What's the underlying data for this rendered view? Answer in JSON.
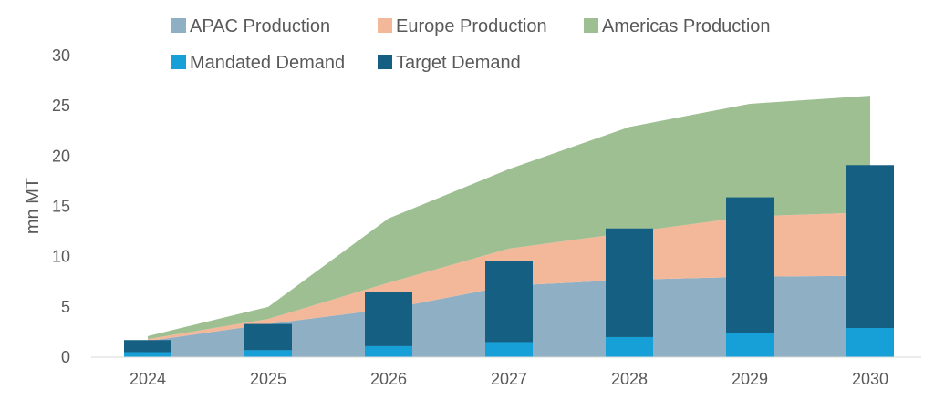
{
  "chart_data": {
    "type": "area",
    "categories": [
      "2024",
      "2025",
      "2026",
      "2027",
      "2028",
      "2029",
      "2030"
    ],
    "ylabel": "mn MT",
    "ylim": [
      0,
      30
    ],
    "yticks": [
      0,
      5,
      10,
      15,
      20,
      25,
      30
    ],
    "grid": false,
    "legend_position": "top",
    "stacked_areas": [
      {
        "name": "APAC Production",
        "color": "#8eafc4",
        "values": [
          1.6,
          3.3,
          4.8,
          7.1,
          7.7,
          8.0,
          8.1
        ]
      },
      {
        "name": "Europe Production",
        "color": "#f3b89a",
        "values": [
          0.2,
          0.5,
          2.6,
          3.7,
          4.7,
          6.0,
          6.3
        ]
      },
      {
        "name": "Americas Production",
        "color": "#9dbf92",
        "values": [
          0.3,
          1.2,
          6.4,
          7.9,
          10.5,
          11.2,
          11.6
        ]
      }
    ],
    "stacked_bars": [
      {
        "name": "Mandated Demand",
        "color": "#17a0d8",
        "values": [
          0.5,
          0.7,
          1.1,
          1.5,
          2.0,
          2.4,
          2.9
        ]
      },
      {
        "name": "Target Demand",
        "color": "#155f82",
        "values": [
          1.2,
          2.6,
          5.4,
          8.1,
          10.8,
          13.5,
          16.2
        ]
      }
    ]
  }
}
